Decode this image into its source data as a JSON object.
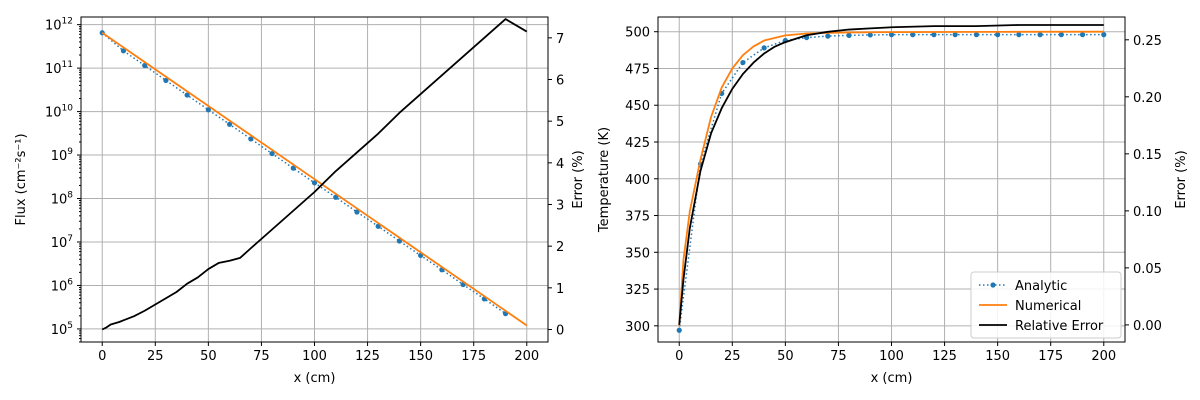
{
  "chart_data": [
    {
      "type": "line",
      "xlabel": "x (cm)",
      "ylabel": "Flux (cm⁻²s⁻¹)",
      "y2label": "Error (%)",
      "xlim": [
        -10,
        210
      ],
      "ylim": [
        50000,
        1500000000000
      ],
      "yscale": "log",
      "y2lim": [
        -0.3,
        7.5
      ],
      "grid": true,
      "x_ticks": [
        "0",
        "25",
        "50",
        "75",
        "100",
        "125",
        "150",
        "175",
        "200"
      ],
      "y_ticks": [
        {
          "base": "10",
          "exp": "5"
        },
        {
          "base": "10",
          "exp": "6"
        },
        {
          "base": "10",
          "exp": "7"
        },
        {
          "base": "10",
          "exp": "8"
        },
        {
          "base": "10",
          "exp": "9"
        },
        {
          "base": "10",
          "exp": "10"
        },
        {
          "base": "10",
          "exp": "11"
        },
        {
          "base": "10",
          "exp": "12"
        }
      ],
      "y2_ticks": [
        "0",
        "1",
        "2",
        "3",
        "4",
        "5",
        "6",
        "7"
      ],
      "series": [
        {
          "name": "Analytic",
          "style": "dotted-marker",
          "color": "#1f77b4",
          "x": [
            0,
            10,
            20,
            30,
            40,
            50,
            60,
            70,
            80,
            90,
            100,
            110,
            120,
            130,
            140,
            150,
            160,
            170,
            180,
            190
          ],
          "y": [
            650000000000,
            250000000000,
            115000000000,
            52000000000,
            24000000000,
            11000000000,
            5100000000,
            2350000000,
            1080000000,
            500000000,
            230000000,
            107000000,
            49000000,
            23000000,
            10500000,
            4900000,
            2300000,
            1050000,
            490000,
            225000
          ]
        },
        {
          "name": "Numerical",
          "style": "solid",
          "color": "#ff7f0e",
          "x": [
            0,
            200
          ],
          "y": [
            650000000000,
            120000
          ]
        },
        {
          "name": "Relative Error",
          "style": "solid",
          "color": "#000000",
          "axis": "right",
          "x": [
            0,
            2,
            4,
            6,
            8,
            10,
            15,
            20,
            25,
            30,
            35,
            40,
            45,
            50,
            55,
            60,
            65,
            70,
            80,
            90,
            100,
            110,
            120,
            130,
            140,
            150,
            160,
            170,
            180,
            190,
            200
          ],
          "y": [
            0.0,
            0.05,
            0.12,
            0.15,
            0.18,
            0.22,
            0.32,
            0.45,
            0.6,
            0.75,
            0.9,
            1.1,
            1.25,
            1.45,
            1.6,
            1.65,
            1.72,
            1.95,
            2.4,
            2.85,
            3.3,
            3.8,
            4.25,
            4.7,
            5.2,
            5.65,
            6.1,
            6.55,
            7.0,
            7.45,
            7.15
          ]
        }
      ]
    },
    {
      "type": "line",
      "xlabel": "x (cm)",
      "ylabel": "Temperature (K)",
      "y2label": "Error (%)",
      "xlim": [
        -10,
        210
      ],
      "ylim": [
        289,
        510
      ],
      "y2lim": [
        -0.015,
        0.27
      ],
      "grid": true,
      "legend": "bottom-right",
      "x_ticks": [
        "0",
        "25",
        "50",
        "75",
        "100",
        "125",
        "150",
        "175",
        "200"
      ],
      "y_ticks": [
        "300",
        "325",
        "350",
        "375",
        "400",
        "425",
        "450",
        "475",
        "500"
      ],
      "y2_ticks": [
        "0.00",
        "0.05",
        "0.10",
        "0.15",
        "0.20",
        "0.25"
      ],
      "series": [
        {
          "name": "Analytic",
          "style": "dotted-marker",
          "color": "#1f77b4",
          "x": [
            0,
            10,
            20,
            30,
            40,
            50,
            60,
            70,
            80,
            90,
            100,
            110,
            120,
            130,
            140,
            150,
            160,
            170,
            180,
            190,
            200
          ],
          "y": [
            297,
            410,
            458,
            479,
            489,
            494,
            496,
            497,
            497.5,
            497.8,
            498,
            498,
            498,
            498,
            498,
            498,
            498,
            498,
            498,
            498,
            498
          ]
        },
        {
          "name": "Numerical",
          "style": "solid",
          "color": "#ff7f0e",
          "x": [
            0,
            2,
            5,
            10,
            15,
            20,
            25,
            30,
            35,
            40,
            50,
            60,
            70,
            80,
            100,
            120,
            150,
            200
          ],
          "y": [
            300,
            345,
            378,
            413,
            442,
            462,
            475,
            484,
            490,
            494,
            497.5,
            498.8,
            499.2,
            499.5,
            499.7,
            499.8,
            499.9,
            500
          ]
        },
        {
          "name": "Relative Error",
          "style": "solid",
          "color": "#000000",
          "axis": "right",
          "x": [
            0,
            2,
            5,
            10,
            15,
            20,
            25,
            30,
            35,
            40,
            45,
            50,
            60,
            70,
            80,
            90,
            100,
            120,
            140,
            160,
            180,
            200
          ],
          "y": [
            0.0,
            0.04,
            0.085,
            0.135,
            0.168,
            0.19,
            0.207,
            0.22,
            0.23,
            0.238,
            0.244,
            0.248,
            0.254,
            0.257,
            0.259,
            0.26,
            0.261,
            0.262,
            0.262,
            0.263,
            0.263,
            0.263
          ]
        }
      ]
    }
  ]
}
